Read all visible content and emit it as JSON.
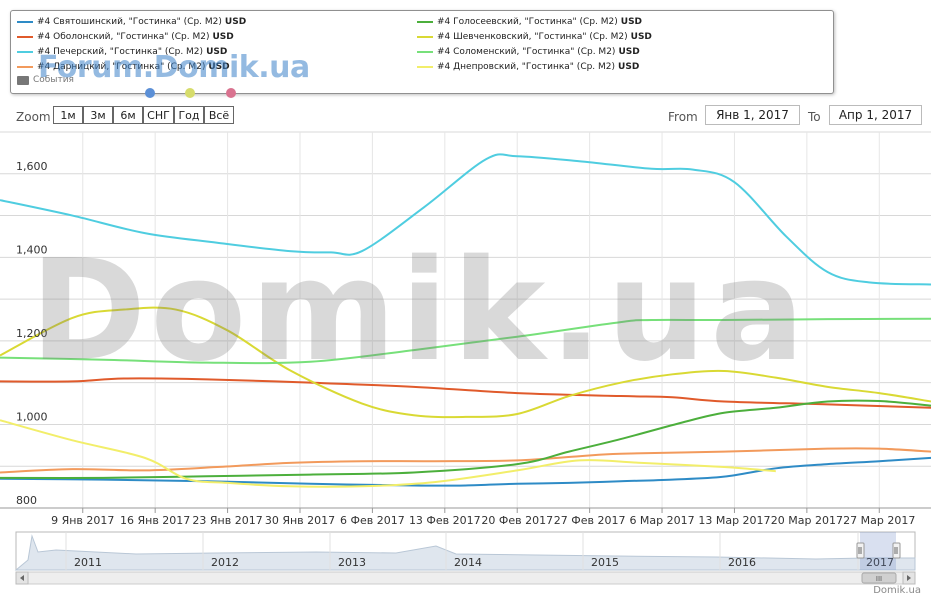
{
  "legend": {
    "items": [
      {
        "label": "#4 Святошинский, \"Гостинка\" (Ср. М2)",
        "unit": "USD",
        "color": "#2e8bc6"
      },
      {
        "label": "#4 Оболонский, \"Гостинка\" (Ср. М2)",
        "unit": "USD",
        "color": "#e05a2b"
      },
      {
        "label": "#4 Печерский, \"Гостинка\" (Ср. М2)",
        "unit": "USD",
        "color": "#4fcde0"
      },
      {
        "label": "#4 Дарницкий, \"Гостинка\" (Ср. М2)",
        "unit": "USD",
        "color": "#f29a5c"
      },
      {
        "label": "#4 Голосеевский, \"Гостинка\" (Ср. М2)",
        "unit": "USD",
        "color": "#4caf3c"
      },
      {
        "label": "#4 Шевченковский, \"Гостинка\" (Ср. М2)",
        "unit": "USD",
        "color": "#d9d934"
      },
      {
        "label": "#4 Соломенский, \"Гостинка\" (Ср. М2)",
        "unit": "USD",
        "color": "#77e07a"
      },
      {
        "label": "#4 Днепровский, \"Гостинка\" (Ср. М2)",
        "unit": "USD",
        "color": "#f2ee6a"
      }
    ],
    "events_label": "События",
    "dot_colors": [
      "#5b8fd6",
      "#d6dc6b",
      "#d9728f"
    ]
  },
  "watermarks": {
    "forum": "Forum.Domik.ua",
    "main": "Domik.ua",
    "credit": "Domik.ua"
  },
  "range_selector": {
    "zoom_label": "Zoom",
    "buttons": [
      "1м",
      "3м",
      "6м",
      "СНГ",
      "Год",
      "Всё"
    ],
    "from_label": "From",
    "from_value": "Янв 1, 2017",
    "to_label": "To",
    "to_value": "Апр 1, 2017"
  },
  "chart_data": {
    "type": "line",
    "ylim": [
      800,
      1700
    ],
    "y_ticks": [
      800,
      1000,
      1200,
      1400,
      1600
    ],
    "y_tick_labels": [
      "800",
      "1,000",
      "1,200",
      "1,400",
      "1,600"
    ],
    "x_tick_labels": [
      "9 Янв 2017",
      "16 Янв 2017",
      "23 Янв 2017",
      "30 Янв 2017",
      "6 Фев 2017",
      "13 Фев 2017",
      "20 Фев 2017",
      "27 Фев 2017",
      "6 Mар 2017",
      "13 Mар 2017",
      "20 Mар 2017",
      "27 Mар 2017"
    ],
    "x_days": [
      8,
      15,
      22,
      29,
      36,
      43,
      50,
      57,
      64,
      71,
      78,
      85
    ],
    "x_range_days": [
      0,
      90
    ],
    "grid": true,
    "series": [
      {
        "name": "#4 Святошинский, \"Гостинка\" (Ср. М2)",
        "color": "#2e8bc6",
        "x": [
          0,
          10,
          20,
          30,
          40,
          45,
          50,
          55,
          60,
          65,
          70,
          75,
          80,
          85,
          90
        ],
        "y": [
          870,
          868,
          864,
          858,
          854,
          854,
          858,
          860,
          864,
          868,
          875,
          895,
          905,
          912,
          920
        ]
      },
      {
        "name": "#4 Оболонский, \"Гостинка\" (Ср. М2)",
        "color": "#e05a2b",
        "x": [
          0,
          7,
          12,
          20,
          30,
          40,
          50,
          60,
          65,
          70,
          80,
          90
        ],
        "y": [
          1103,
          1103,
          1110,
          1108,
          1100,
          1090,
          1075,
          1068,
          1065,
          1055,
          1048,
          1040
        ]
      },
      {
        "name": "#4 Печерский, \"Гостинка\" (Ср. М2)",
        "color": "#4fcde0",
        "x": [
          0,
          7,
          14,
          21,
          28,
          32,
          35,
          41,
          47,
          50,
          56,
          63,
          67,
          71,
          76,
          80,
          84,
          90
        ],
        "y": [
          1537,
          1500,
          1458,
          1435,
          1415,
          1412,
          1415,
          1520,
          1635,
          1642,
          1630,
          1612,
          1610,
          1580,
          1450,
          1365,
          1340,
          1335
        ]
      },
      {
        "name": "#4 Дарницкий, \"Гостинка\" (Ср. М2)",
        "color": "#f29a5c",
        "x": [
          0,
          7,
          14,
          21,
          28,
          35,
          42,
          50,
          56,
          60,
          70,
          80,
          85,
          90
        ],
        "y": [
          885,
          893,
          890,
          898,
          908,
          912,
          912,
          914,
          924,
          930,
          935,
          942,
          942,
          935
        ]
      },
      {
        "name": "#4 Голосеевский, \"Гостинка\" (Ср. М2)",
        "color": "#4caf3c",
        "x": [
          0,
          10,
          20,
          30,
          40,
          50,
          55,
          60,
          66,
          70,
          75,
          80,
          85,
          90
        ],
        "y": [
          872,
          872,
          876,
          880,
          885,
          905,
          935,
          965,
          1005,
          1028,
          1040,
          1055,
          1056,
          1045
        ]
      },
      {
        "name": "#4 Шевченковский, \"Гостинка\" (Ср. М2)",
        "color": "#d9d934",
        "x": [
          0,
          7,
          12,
          17,
          22,
          28,
          35,
          40,
          45,
          50,
          55,
          60,
          65,
          70,
          75,
          80,
          85,
          90
        ],
        "y": [
          1165,
          1255,
          1275,
          1275,
          1225,
          1130,
          1050,
          1022,
          1018,
          1025,
          1068,
          1100,
          1120,
          1128,
          1112,
          1090,
          1075,
          1055
        ]
      },
      {
        "name": "#4 Соломенский, \"Гостинка\" (Ср. М2)",
        "color": "#77e07a",
        "x": [
          0,
          10,
          20,
          30,
          40,
          50,
          60,
          63,
          70,
          80,
          90
        ],
        "y": [
          1160,
          1155,
          1148,
          1150,
          1178,
          1210,
          1245,
          1250,
          1250,
          1252,
          1253
        ]
      },
      {
        "name": "#4 Днепровский, \"Гостинка\" (Ср. М2)",
        "color": "#f2ee6a",
        "x": [
          0,
          7,
          14,
          18,
          22,
          28,
          35,
          42,
          50,
          56,
          62,
          70,
          75
        ],
        "y": [
          1010,
          962,
          920,
          870,
          860,
          852,
          852,
          862,
          890,
          914,
          908,
          898,
          888
        ]
      }
    ]
  },
  "navigator": {
    "year_labels": [
      "2011",
      "2012",
      "2013",
      "2014",
      "2015",
      "2016",
      "2017"
    ],
    "handle_label": "III"
  }
}
